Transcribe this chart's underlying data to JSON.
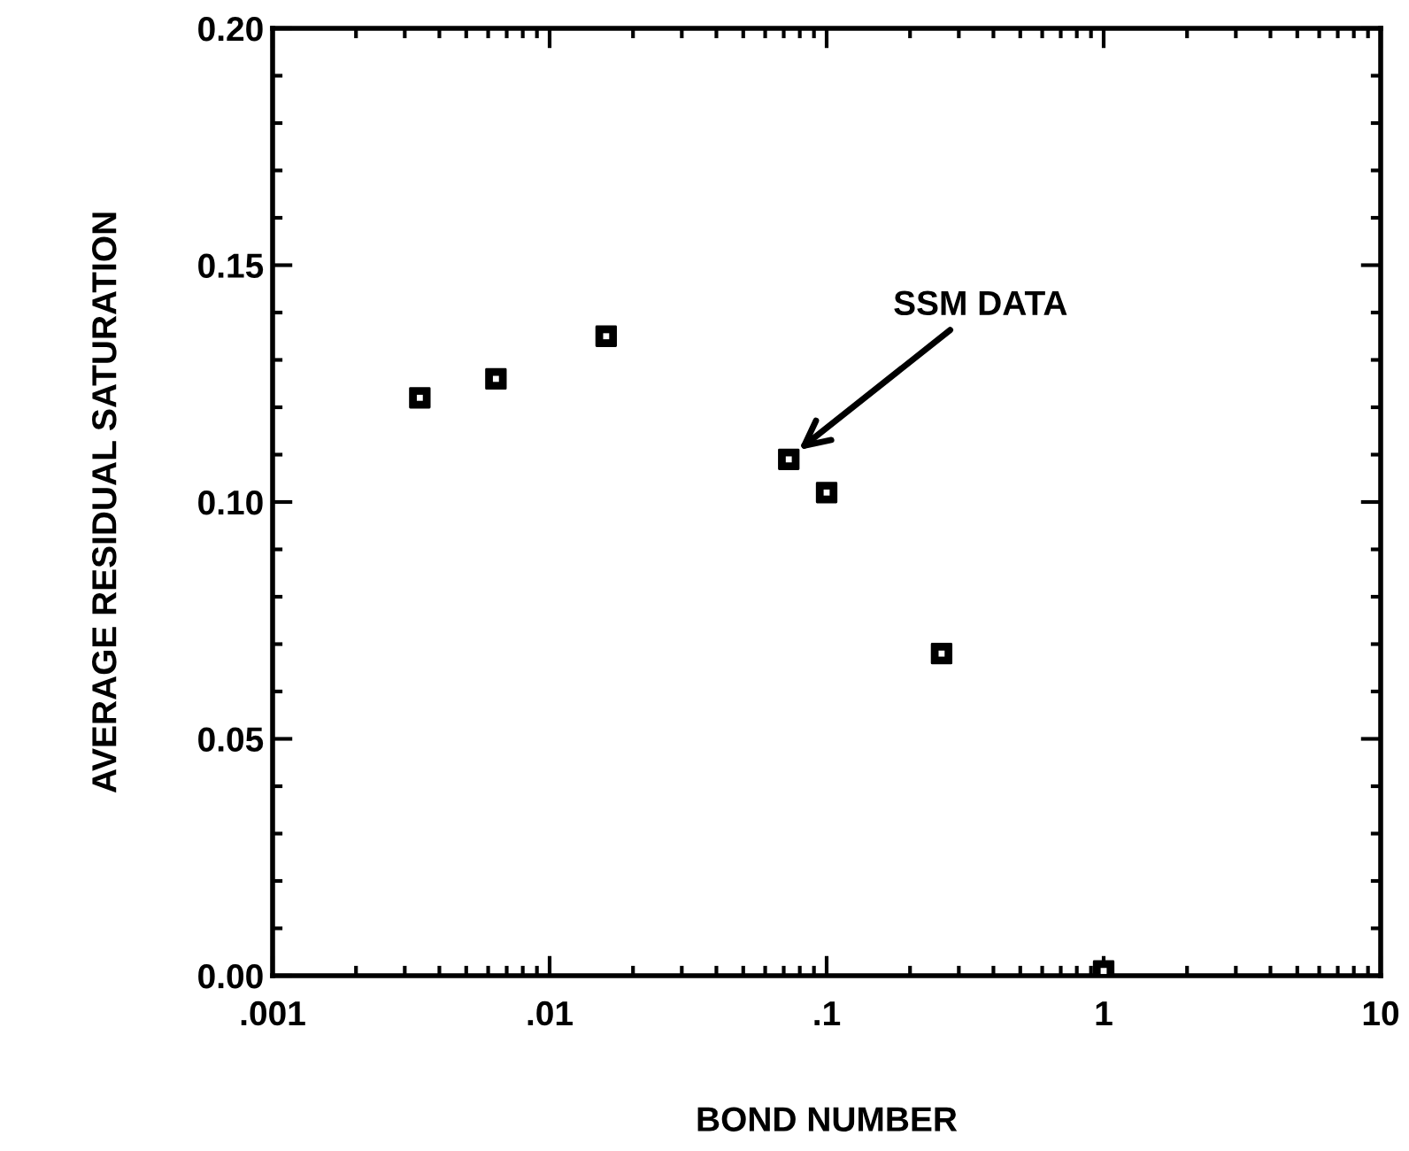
{
  "chart_data": {
    "type": "scatter",
    "xlabel": "BOND NUMBER",
    "ylabel": "AVERAGE RESIDUAL SATURATION",
    "x": [
      0.0034,
      0.0064,
      0.016,
      0.073,
      0.1,
      0.26,
      1.0
    ],
    "values": [
      0.122,
      0.126,
      0.135,
      0.109,
      0.102,
      0.068,
      0.001
    ],
    "color": "#000000",
    "marker": "square",
    "log": "x",
    "grid": false,
    "xlim": [
      0.001,
      10
    ],
    "xticks": [
      {
        "value": 0.001,
        "label": ".001"
      },
      {
        "value": 0.01,
        "label": ".01"
      },
      {
        "value": 0.1,
        "label": ".1"
      },
      1,
      10
    ],
    "ylim": [
      0,
      0.2
    ],
    "yticks": [
      {
        "value": 0,
        "label": "0.00"
      },
      {
        "value": 0.05,
        "label": "0.05"
      },
      {
        "value": 0.1,
        "label": "0.10"
      },
      {
        "value": 0.15,
        "label": "0.15"
      },
      {
        "value": 0.2,
        "label": "0.20"
      }
    ],
    "annotations": [
      "SSM DATA"
    ]
  }
}
